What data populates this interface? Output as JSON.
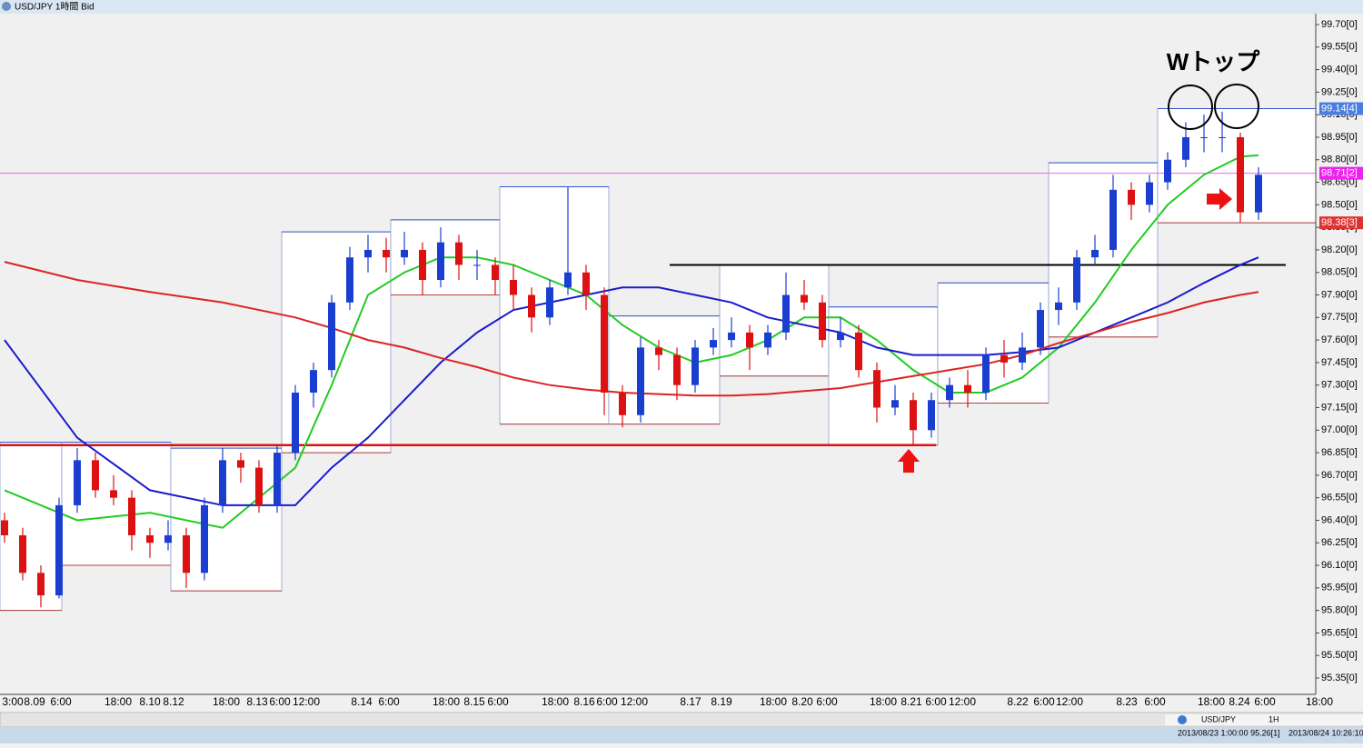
{
  "window": {
    "title": "USD/JPY 1時間 Bid",
    "symbol": "USD/JPY",
    "timeframe": "1H"
  },
  "chart": {
    "type": "candlestick",
    "annotation": "Wトップ",
    "price_ticks": [
      {
        "value": 99.7,
        "label": "99.70[0]"
      },
      {
        "value": 99.55,
        "label": "99.55[0]"
      },
      {
        "value": 99.4,
        "label": "99.40[0]"
      },
      {
        "value": 99.25,
        "label": "99.25[0]"
      },
      {
        "value": 99.1,
        "label": "99.10[0]"
      },
      {
        "value": 98.95,
        "label": "98.95[0]"
      },
      {
        "value": 98.8,
        "label": "98.80[0]"
      },
      {
        "value": 98.65,
        "label": "98.65[0]"
      },
      {
        "value": 98.5,
        "label": "98.50[0]"
      },
      {
        "value": 98.35,
        "label": "98.35[0]"
      },
      {
        "value": 98.2,
        "label": "98.20[0]"
      },
      {
        "value": 98.05,
        "label": "98.05[0]"
      },
      {
        "value": 97.9,
        "label": "97.90[0]"
      },
      {
        "value": 97.75,
        "label": "97.75[0]"
      },
      {
        "value": 97.6,
        "label": "97.60[0]"
      },
      {
        "value": 97.45,
        "label": "97.45[0]"
      },
      {
        "value": 97.3,
        "label": "97.30[0]"
      },
      {
        "value": 97.15,
        "label": "97.15[0]"
      },
      {
        "value": 97.0,
        "label": "97.00[0]"
      },
      {
        "value": 96.85,
        "label": "96.85[0]"
      },
      {
        "value": 96.7,
        "label": "96.70[0]"
      },
      {
        "value": 96.55,
        "label": "96.55[0]"
      },
      {
        "value": 96.4,
        "label": "96.40[0]"
      },
      {
        "value": 96.25,
        "label": "96.25[0]"
      },
      {
        "value": 96.1,
        "label": "96.10[0]"
      },
      {
        "value": 95.95,
        "label": "95.95[0]"
      },
      {
        "value": 95.8,
        "label": "95.80[0]"
      },
      {
        "value": 95.65,
        "label": "95.65[0]"
      },
      {
        "value": 95.5,
        "label": "95.50[0]"
      },
      {
        "value": 95.35,
        "label": "95.35[0]"
      }
    ],
    "time_labels": [
      "3:00",
      "8.09",
      "6:00",
      "18:00",
      "8.10",
      "8.12",
      "18:00",
      "8.13",
      "6:00",
      "12:00",
      "8.14",
      "6:00",
      "18:00",
      "8.15",
      "6:00",
      "18:00",
      "8.16",
      "6:00",
      "12:00",
      "8.17",
      "8.19",
      "18:00",
      "8.20",
      "6:00",
      "18:00",
      "8.21",
      "6:00",
      "12:00",
      "8.22",
      "6:00",
      "12:00",
      "8.23",
      "6:00",
      "18:00",
      "8.24",
      "6:00",
      "18:00"
    ],
    "candles": [
      [
        96.4,
        96.45,
        96.25,
        96.3
      ],
      [
        96.3,
        96.35,
        96.0,
        96.05
      ],
      [
        96.05,
        96.1,
        95.82,
        95.9
      ],
      [
        95.9,
        96.55,
        95.88,
        96.5
      ],
      [
        96.5,
        96.88,
        96.45,
        96.8
      ],
      [
        96.8,
        96.85,
        96.55,
        96.6
      ],
      [
        96.6,
        96.7,
        96.5,
        96.55
      ],
      [
        96.55,
        96.6,
        96.2,
        96.3
      ],
      [
        96.3,
        96.35,
        96.15,
        96.25
      ],
      [
        96.25,
        96.4,
        96.2,
        96.3
      ],
      [
        96.3,
        96.35,
        95.95,
        96.05
      ],
      [
        96.05,
        96.55,
        96.0,
        96.5
      ],
      [
        96.5,
        96.88,
        96.45,
        96.8
      ],
      [
        96.8,
        96.85,
        96.65,
        96.75
      ],
      [
        96.75,
        96.8,
        96.45,
        96.5
      ],
      [
        96.5,
        96.9,
        96.45,
        96.85
      ],
      [
        96.85,
        97.3,
        96.8,
        97.25
      ],
      [
        97.25,
        97.45,
        97.15,
        97.4
      ],
      [
        97.4,
        97.9,
        97.35,
        97.85
      ],
      [
        97.85,
        98.22,
        97.8,
        98.15
      ],
      [
        98.15,
        98.3,
        98.05,
        98.2
      ],
      [
        98.2,
        98.28,
        98.05,
        98.15
      ],
      [
        98.15,
        98.32,
        98.1,
        98.2
      ],
      [
        98.2,
        98.25,
        97.9,
        98.0
      ],
      [
        98.0,
        98.35,
        97.95,
        98.25
      ],
      [
        98.25,
        98.3,
        98.0,
        98.1
      ],
      [
        98.1,
        98.2,
        98.0,
        98.1
      ],
      [
        98.1,
        98.15,
        97.9,
        98.0
      ],
      [
        98.0,
        98.1,
        97.8,
        97.9
      ],
      [
        97.9,
        97.95,
        97.65,
        97.75
      ],
      [
        97.75,
        98.0,
        97.7,
        97.95
      ],
      [
        97.95,
        98.62,
        97.9,
        98.05
      ],
      [
        98.05,
        98.1,
        97.8,
        97.9
      ],
      [
        97.9,
        97.95,
        97.1,
        97.25
      ],
      [
        97.25,
        97.3,
        97.02,
        97.1
      ],
      [
        97.1,
        97.62,
        97.05,
        97.55
      ],
      [
        97.55,
        97.6,
        97.4,
        97.5
      ],
      [
        97.5,
        97.55,
        97.2,
        97.3
      ],
      [
        97.3,
        97.6,
        97.25,
        97.55
      ],
      [
        97.55,
        97.68,
        97.5,
        97.6
      ],
      [
        97.6,
        97.75,
        97.55,
        97.65
      ],
      [
        97.65,
        97.7,
        97.4,
        97.55
      ],
      [
        97.55,
        97.7,
        97.5,
        97.65
      ],
      [
        97.65,
        98.05,
        97.6,
        97.9
      ],
      [
        97.9,
        98.0,
        97.8,
        97.85
      ],
      [
        97.85,
        97.9,
        97.55,
        97.6
      ],
      [
        97.6,
        97.75,
        97.55,
        97.65
      ],
      [
        97.65,
        97.7,
        97.35,
        97.4
      ],
      [
        97.4,
        97.45,
        97.05,
        97.15
      ],
      [
        97.15,
        97.3,
        97.1,
        97.2
      ],
      [
        97.2,
        97.25,
        96.9,
        97.0
      ],
      [
        97.0,
        97.25,
        96.95,
        97.2
      ],
      [
        97.2,
        97.35,
        97.15,
        97.3
      ],
      [
        97.3,
        97.4,
        97.15,
        97.25
      ],
      [
        97.25,
        97.55,
        97.2,
        97.5
      ],
      [
        97.5,
        97.6,
        97.35,
        97.45
      ],
      [
        97.45,
        97.65,
        97.4,
        97.55
      ],
      [
        97.55,
        97.85,
        97.5,
        97.8
      ],
      [
        97.8,
        97.95,
        97.7,
        97.85
      ],
      [
        97.85,
        98.2,
        97.8,
        98.15
      ],
      [
        98.15,
        98.3,
        98.1,
        98.2
      ],
      [
        98.2,
        98.7,
        98.15,
        98.6
      ],
      [
        98.6,
        98.65,
        98.4,
        98.5
      ],
      [
        98.5,
        98.7,
        98.45,
        98.65
      ],
      [
        98.65,
        98.85,
        98.6,
        98.8
      ],
      [
        98.8,
        99.05,
        98.75,
        98.95
      ],
      [
        98.95,
        99.1,
        98.85,
        98.95
      ],
      [
        98.95,
        99.12,
        98.85,
        98.95
      ],
      [
        98.95,
        98.98,
        98.38,
        98.45
      ],
      [
        98.45,
        98.75,
        98.4,
        98.7
      ]
    ],
    "ma": [
      {
        "color": "#22cc22",
        "x": [
          0,
          4,
          8,
          12,
          16,
          18,
          20,
          22,
          24,
          26,
          28,
          30,
          32,
          34,
          36,
          38,
          40,
          42,
          44,
          46,
          48,
          50,
          52,
          54,
          56,
          58,
          60,
          62,
          64,
          66,
          68,
          69
        ],
        "values": [
          96.6,
          96.4,
          96.45,
          96.35,
          96.75,
          97.3,
          97.9,
          98.05,
          98.15,
          98.15,
          98.1,
          98.0,
          97.9,
          97.7,
          97.55,
          97.45,
          97.5,
          97.6,
          97.75,
          97.75,
          97.6,
          97.4,
          97.25,
          97.25,
          97.35,
          97.55,
          97.85,
          98.2,
          98.5,
          98.7,
          98.82,
          98.83
        ]
      },
      {
        "color": "#1a1acc",
        "x": [
          0,
          4,
          8,
          12,
          16,
          18,
          20,
          22,
          24,
          26,
          28,
          30,
          32,
          34,
          36,
          38,
          40,
          42,
          44,
          46,
          48,
          50,
          52,
          54,
          56,
          58,
          60,
          62,
          64,
          66,
          68,
          69
        ],
        "values": [
          97.6,
          96.95,
          96.6,
          96.5,
          96.5,
          96.75,
          96.95,
          97.2,
          97.45,
          97.65,
          97.8,
          97.85,
          97.9,
          97.95,
          97.95,
          97.9,
          97.85,
          97.75,
          97.7,
          97.65,
          97.55,
          97.5,
          97.5,
          97.5,
          97.52,
          97.55,
          97.65,
          97.75,
          97.85,
          97.98,
          98.1,
          98.15
        ]
      },
      {
        "color": "#dd2222",
        "x": [
          0,
          4,
          8,
          12,
          16,
          18,
          20,
          22,
          24,
          26,
          28,
          30,
          32,
          34,
          36,
          38,
          40,
          42,
          44,
          46,
          48,
          50,
          52,
          54,
          56,
          58,
          60,
          62,
          64,
          66,
          68,
          69
        ],
        "values": [
          98.12,
          98.0,
          97.92,
          97.85,
          97.75,
          97.68,
          97.6,
          97.55,
          97.48,
          97.42,
          97.35,
          97.3,
          97.27,
          97.25,
          97.24,
          97.23,
          97.23,
          97.24,
          97.26,
          97.28,
          97.32,
          97.36,
          97.4,
          97.44,
          97.5,
          97.58,
          97.65,
          97.72,
          97.78,
          97.85,
          97.9,
          97.92
        ]
      }
    ],
    "boxes": [
      {
        "high": 96.92,
        "low": 95.8
      },
      {
        "high": 96.92,
        "low": 96.1
      },
      {
        "high": 96.88,
        "low": 95.93
      },
      {
        "high": 98.32,
        "low": 96.85
      },
      {
        "high": 98.4,
        "low": 97.9
      },
      {
        "high": 98.62,
        "low": 97.04
      },
      {
        "high": 97.76,
        "low": 97.04
      },
      {
        "high": 98.1,
        "low": 97.36
      },
      {
        "high": 97.82,
        "low": 96.9
      },
      {
        "high": 97.98,
        "low": 97.18
      },
      {
        "high": 98.78,
        "low": 97.62
      },
      {
        "high": 99.14,
        "low": 98.38
      }
    ],
    "lines": [
      {
        "value": 96.9,
        "color": "#dd1111"
      },
      {
        "value": 98.1,
        "color": "#000000"
      },
      {
        "value": 98.71,
        "color": "#ee66ee"
      }
    ],
    "price_tags": [
      {
        "value": 99.14,
        "label": "99.14[4]",
        "color": "#4a7ee0"
      },
      {
        "value": 98.71,
        "label": "98.71[2]",
        "color": "#ee22ee"
      },
      {
        "value": 98.38,
        "label": "98.38[3]",
        "color": "#dd3333"
      }
    ]
  },
  "status": {
    "left": "2013/08/23 1:00:00  95.26[1]",
    "right": "2013/08/24 10:26:10"
  }
}
